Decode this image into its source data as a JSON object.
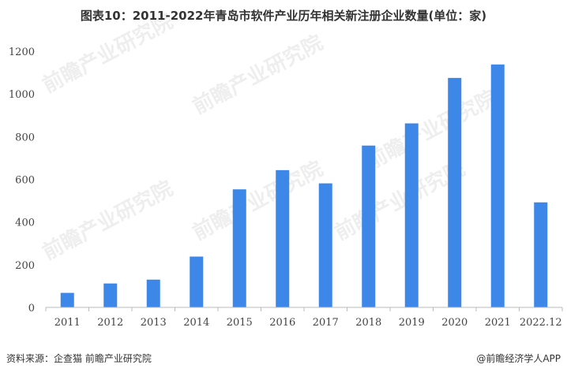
{
  "title": "图表10：2011-2022年青岛市软件产业历年相关新注册企业数量(单位：家)",
  "footer": {
    "source": "资料来源：企查猫 前瞻产业研究院",
    "brand": "@前瞻经济学人APP"
  },
  "watermark": "前瞻产业研究院",
  "colors": {
    "bar": "#3C87E7",
    "axis": "#bbbbbb",
    "text": "#444444"
  },
  "chart_data": {
    "type": "bar",
    "categories": [
      "2011",
      "2012",
      "2013",
      "2014",
      "2015",
      "2016",
      "2017",
      "2018",
      "2019",
      "2020",
      "2021",
      "2022.12"
    ],
    "values": [
      68,
      112,
      130,
      238,
      553,
      643,
      581,
      758,
      862,
      1075,
      1138,
      492
    ],
    "ylim": [
      0,
      1200
    ],
    "yticks": [
      0,
      200,
      400,
      600,
      800,
      1000,
      1200
    ],
    "grid": false
  }
}
